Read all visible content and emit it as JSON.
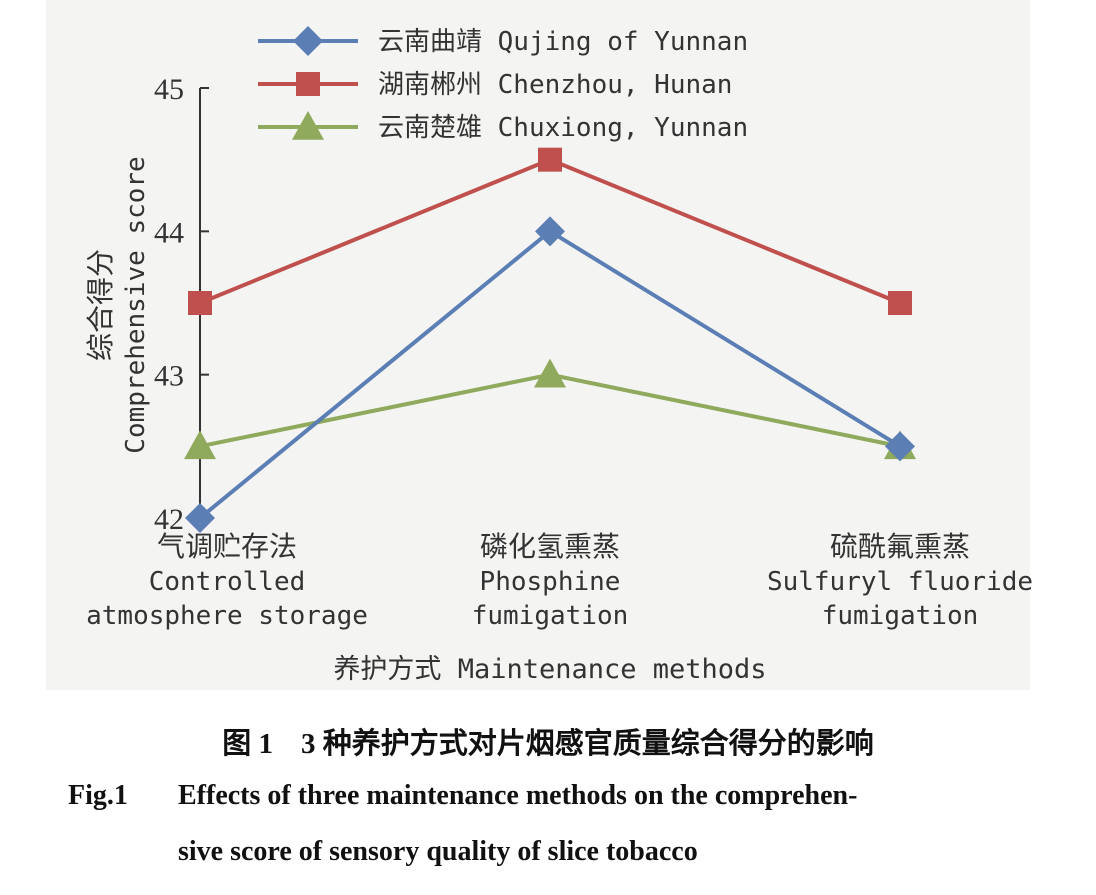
{
  "chart_data": {
    "type": "line",
    "categories": [
      {
        "cn": "气调贮存法",
        "en1": "Controlled",
        "en2": "atmosphere storage"
      },
      {
        "cn": "磷化氢熏蒸",
        "en1": "Phosphine",
        "en2": "fumigation"
      },
      {
        "cn": "硫酰氟熏蒸",
        "en1": "Sulfuryl fluoride",
        "en2": "fumigation"
      }
    ],
    "series": [
      {
        "name": "云南曲靖 Qujing of Yunnan",
        "values": [
          42.0,
          44.0,
          42.5
        ],
        "color": "#5b7fb5",
        "marker": "diamond"
      },
      {
        "name": "湖南郴州 Chenzhou, Hunan",
        "values": [
          43.5,
          44.5,
          43.5
        ],
        "color": "#c0504d",
        "marker": "square"
      },
      {
        "name": "云南楚雄 Chuxiong, Yunnan",
        "values": [
          42.5,
          43.0,
          42.5
        ],
        "color": "#8faa5c",
        "marker": "triangle"
      }
    ],
    "ylabel_cn": "综合得分",
    "ylabel_en": "Comprehensive score",
    "xlabel": "养护方式 Maintenance methods",
    "ylim": [
      42,
      45
    ],
    "yticks": [
      "42",
      "43",
      "44",
      "45"
    ],
    "grid": false,
    "legend_position": "top"
  },
  "caption": {
    "cn_number": "图 1",
    "cn_text": "3 种养护方式对片烟感官质量综合得分的影响",
    "en_number": "Fig.1",
    "en_line1": "Effects of three maintenance methods on the comprehen-",
    "en_line2": "sive score of sensory quality of slice tobacco"
  }
}
